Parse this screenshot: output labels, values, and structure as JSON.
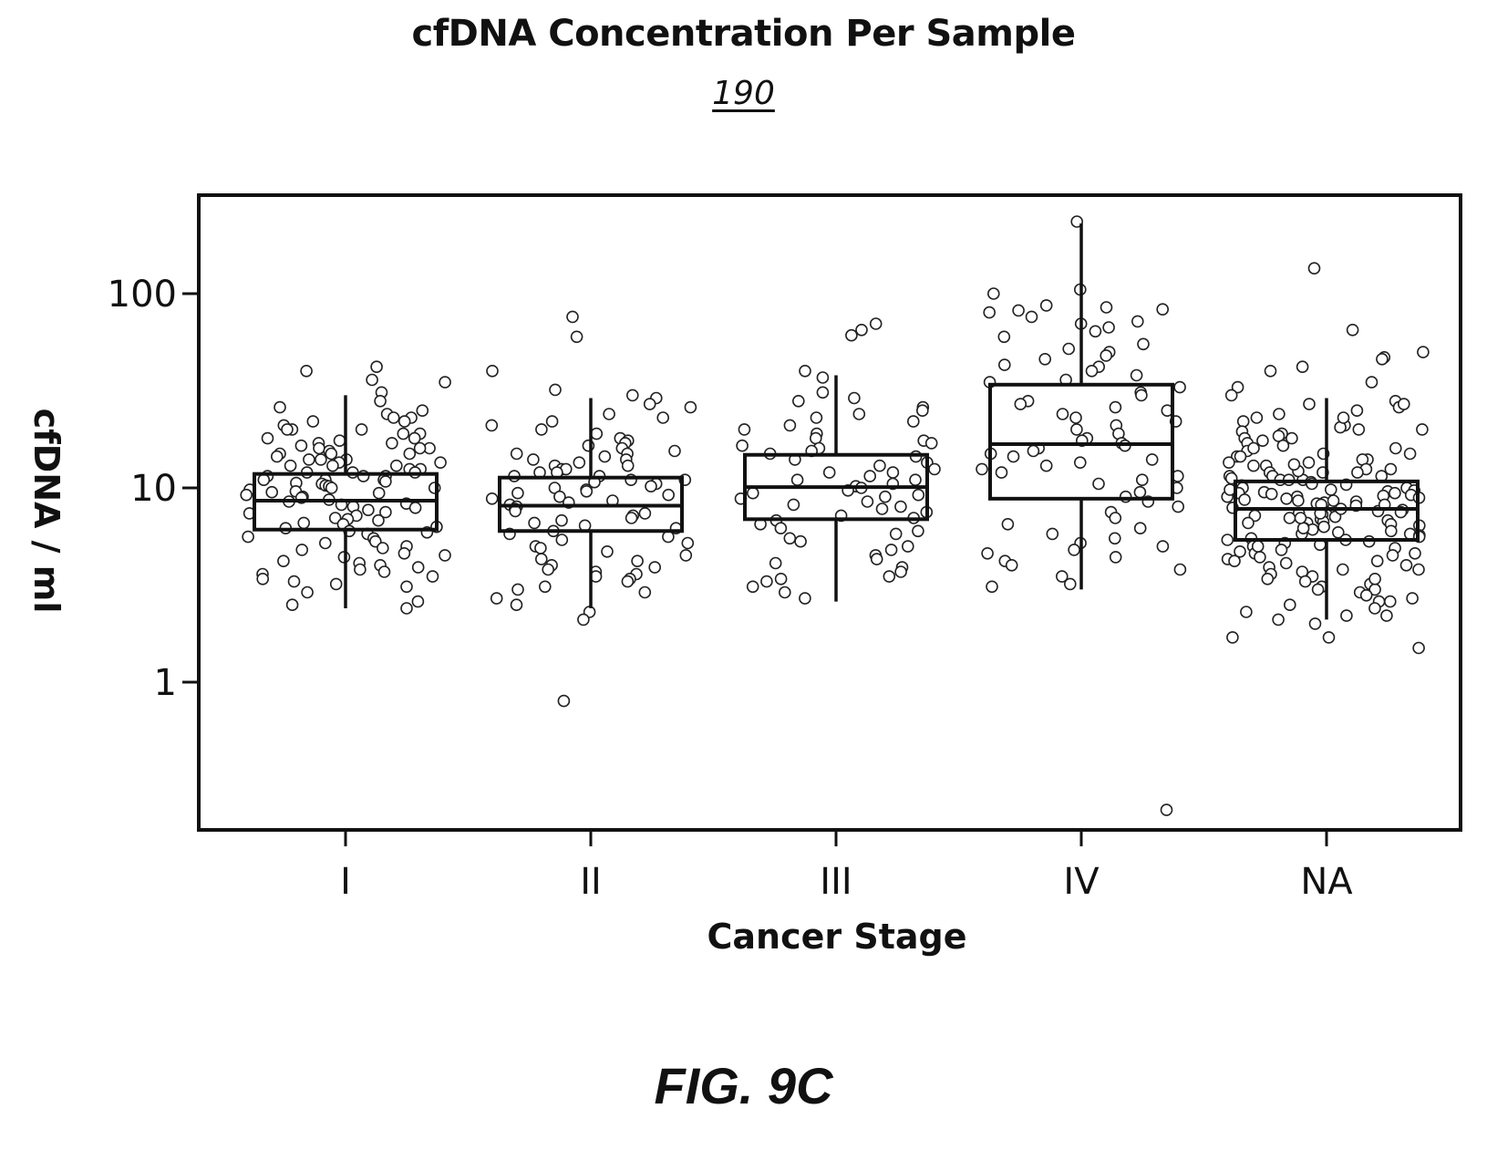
{
  "header": {
    "title": "cfDNA Concentration Per Sample",
    "figure_ref": "190"
  },
  "caption": "FIG. 9C",
  "chart_data": {
    "type": "box",
    "title": "cfDNA Concentration Per Sample",
    "xlabel": "Cancer Stage",
    "ylabel": "cfDNA / ml",
    "yscale": "log",
    "ylim": [
      0.15,
      300
    ],
    "yticks": [
      1,
      10,
      100
    ],
    "ytick_labels": [
      "1",
      "10",
      "100"
    ],
    "grid": false,
    "categories": [
      "I",
      "II",
      "III",
      "IV",
      "NA"
    ],
    "boxes": [
      {
        "category": "I",
        "whisker_low": 2.4,
        "q1": 6.1,
        "median": 8.6,
        "q3": 11.8,
        "whisker_high": 30
      },
      {
        "category": "II",
        "whisker_low": 2.4,
        "q1": 6.0,
        "median": 8.1,
        "q3": 11.3,
        "whisker_high": 29
      },
      {
        "category": "III",
        "whisker_low": 2.6,
        "q1": 6.9,
        "median": 10.1,
        "q3": 14.8,
        "whisker_high": 38
      },
      {
        "category": "IV",
        "whisker_low": 3.0,
        "q1": 8.8,
        "median": 16.8,
        "q3": 34,
        "whisker_high": 230
      },
      {
        "category": "NA",
        "whisker_low": 2.1,
        "q1": 5.4,
        "median": 7.8,
        "q3": 10.8,
        "whisker_high": 29
      }
    ],
    "points": [
      {
        "category": "I",
        "values": [
          42,
          40,
          36,
          35,
          31,
          28,
          26,
          25,
          24,
          23,
          23,
          22,
          22,
          21,
          20,
          20,
          20,
          19,
          19,
          18,
          18,
          17.5,
          17,
          17,
          16.5,
          16,
          16,
          16,
          15.5,
          15,
          15,
          15,
          14.5,
          14,
          14,
          14,
          13.5,
          13.5,
          13,
          13,
          13,
          12.5,
          12.5,
          12,
          12,
          12,
          11.5,
          11.5,
          11.5,
          11,
          11,
          11,
          10.8,
          10.6,
          10.5,
          10.3,
          10.2,
          10,
          10,
          9.8,
          9.6,
          9.5,
          9.4,
          9.2,
          9,
          8.9,
          8.7,
          8.5,
          8.3,
          8.2,
          8,
          7.9,
          7.7,
          7.5,
          7.4,
          7.2,
          7,
          6.9,
          6.8,
          6.6,
          6.5,
          6.3,
          6.2,
          6,
          5.9,
          5.8,
          5.6,
          5.5,
          5.3,
          5.2,
          5,
          4.9,
          4.8,
          4.6,
          4.5,
          4.4,
          4.2,
          4.1,
          4,
          3.9,
          3.8,
          3.7,
          3.6,
          3.5,
          3.4,
          3.3,
          3.2,
          3.1,
          2.9,
          2.6,
          2.5,
          2.4
        ]
      },
      {
        "category": "II",
        "values": [
          76,
          60,
          40,
          32,
          30,
          29,
          27,
          26,
          24,
          23,
          22,
          21,
          20,
          19,
          18,
          17.5,
          17,
          16.5,
          16,
          15.5,
          15,
          15,
          14.5,
          14,
          14,
          13.5,
          13,
          13,
          12.5,
          12.5,
          12,
          12,
          11.5,
          11.5,
          11,
          11,
          10.7,
          10.5,
          10.2,
          10,
          9.8,
          9.6,
          9.4,
          9.2,
          9,
          8.8,
          8.6,
          8.4,
          8.2,
          8,
          7.8,
          7.6,
          7.4,
          7.2,
          7,
          6.8,
          6.6,
          6.4,
          6.2,
          6,
          5.8,
          5.6,
          5.4,
          5.2,
          5,
          4.9,
          4.7,
          4.5,
          4.3,
          4.2,
          4,
          3.9,
          3.8,
          3.7,
          3.6,
          3.5,
          3.4,
          3.3,
          3.1,
          3,
          2.9,
          2.7,
          2.5,
          2.3,
          2.1,
          0.8
        ]
      },
      {
        "category": "III",
        "values": [
          70,
          65,
          61,
          40,
          37,
          31,
          29,
          28,
          26,
          25,
          24,
          23,
          22,
          21,
          20,
          19,
          18,
          17.5,
          17,
          16.5,
          16,
          15.5,
          15,
          14.5,
          14,
          13.5,
          13,
          12.5,
          12,
          12,
          11.5,
          11,
          11,
          10.5,
          10.2,
          10,
          9.7,
          9.4,
          9.2,
          9,
          8.8,
          8.5,
          8.2,
          8,
          7.8,
          7.5,
          7.2,
          7,
          6.8,
          6.5,
          6.2,
          6,
          5.8,
          5.5,
          5.3,
          5,
          4.8,
          4.5,
          4.3,
          4.1,
          3.9,
          3.7,
          3.5,
          3.4,
          3.3,
          3.1,
          2.9,
          2.7
        ]
      },
      {
        "category": "IV",
        "values": [
          235,
          105,
          100,
          87,
          85,
          83,
          82,
          80,
          76,
          72,
          70,
          67,
          64,
          60,
          55,
          52,
          50,
          48,
          46,
          43,
          42,
          40,
          38,
          36,
          35,
          33,
          31,
          30,
          28,
          27,
          26,
          25,
          24,
          23,
          22,
          21,
          20,
          19,
          18,
          17.5,
          17,
          16.5,
          16,
          15.5,
          15,
          14.5,
          14,
          13.5,
          13,
          12.5,
          12,
          11.5,
          11,
          10.5,
          10,
          9.5,
          9,
          8.5,
          8,
          7.5,
          7,
          6.5,
          6.2,
          5.8,
          5.5,
          5.2,
          5,
          4.8,
          4.6,
          4.4,
          4.2,
          4,
          3.8,
          3.5,
          3.2,
          3.1,
          0.22
        ]
      },
      {
        "category": "NA",
        "values": [
          135,
          65,
          50,
          47,
          46,
          42,
          40,
          35,
          33,
          30,
          28,
          27,
          26,
          25,
          24,
          23,
          22,
          21,
          20.5,
          20,
          19.5,
          19,
          18.5,
          18,
          17.5,
          17,
          16.5,
          16,
          15.5,
          15,
          15,
          14.5,
          14,
          14,
          13.5,
          13.5,
          13,
          13,
          12.5,
          12.5,
          12,
          12,
          12,
          11.5,
          11.5,
          11.5,
          11,
          11,
          11,
          10.7,
          10.5,
          10.3,
          10.2,
          10,
          10,
          9.8,
          9.7,
          9.6,
          9.5,
          9.4,
          9.3,
          9.2,
          9.1,
          9,
          8.9,
          8.8,
          8.7,
          8.6,
          8.5,
          8.4,
          8.3,
          8.2,
          8.1,
          8,
          7.9,
          7.8,
          7.7,
          7.6,
          7.5,
          7.4,
          7.3,
          7.2,
          7.1,
          7,
          6.9,
          6.8,
          6.7,
          6.6,
          6.5,
          6.4,
          6.3,
          6.2,
          6.1,
          6,
          5.9,
          5.8,
          5.7,
          5.6,
          5.5,
          5.4,
          5.3,
          5.2,
          5.1,
          5,
          4.9,
          4.8,
          4.7,
          4.6,
          4.5,
          4.4,
          4.3,
          4.2,
          4.1,
          4,
          3.9,
          3.8,
          3.7,
          3.6,
          3.5,
          3.4,
          3.3,
          3.2,
          3.1,
          3,
          2.9,
          2.8,
          2.7,
          2.6,
          2.5,
          2.4,
          2.3,
          2.2,
          2.1,
          2,
          1.7,
          1.5,
          1.7,
          2.2,
          2.6,
          3,
          3.4,
          3.8,
          4.2,
          4.6,
          5,
          5.4,
          5.8,
          6.2,
          6.6,
          7,
          7.4,
          7.8,
          8.2,
          8.6,
          9,
          9.4,
          9.8,
          10.4,
          11.2,
          12.2,
          13.2,
          14.5,
          16,
          18,
          20,
          23,
          27
        ]
      }
    ]
  }
}
